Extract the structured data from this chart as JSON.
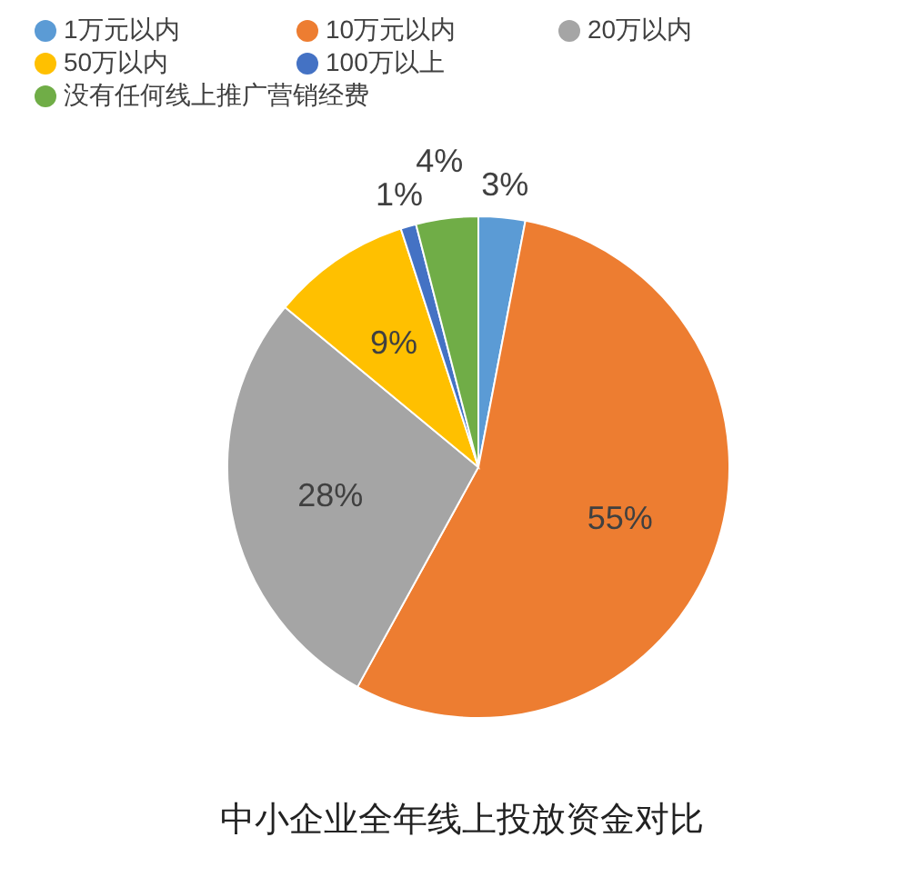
{
  "chart_data": {
    "type": "pie",
    "title": "中小企业全年线上投放资金对比",
    "categories": [
      "1万元以内",
      "10万元以内",
      "20万以内",
      "50万以内",
      "100万以上",
      "没有任何线上推广营销经费"
    ],
    "values": [
      3,
      55,
      28,
      9,
      1,
      4
    ],
    "colors": [
      "#5b9bd5",
      "#ed7d31",
      "#a5a5a5",
      "#ffc000",
      "#4472c4",
      "#70ad47"
    ],
    "value_labels": [
      "3%",
      "55%",
      "28%",
      "9%",
      "1%",
      "4%"
    ],
    "legend": "top"
  }
}
